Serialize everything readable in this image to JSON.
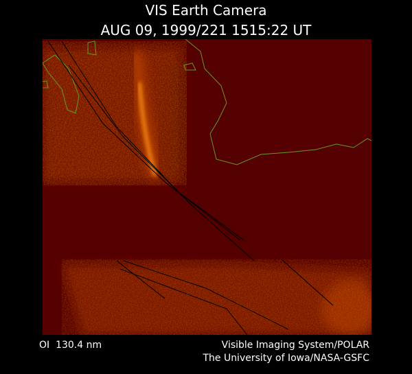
{
  "header": {
    "title": "VIS Earth Camera",
    "timestamp": "AUG 09, 1999/221 1515:22 UT"
  },
  "footer": {
    "filter": "OI  130.4 nm",
    "instrument": "Visible Imaging System/POLAR",
    "institution": "The University of Iowa/NASA-GSFC"
  }
}
